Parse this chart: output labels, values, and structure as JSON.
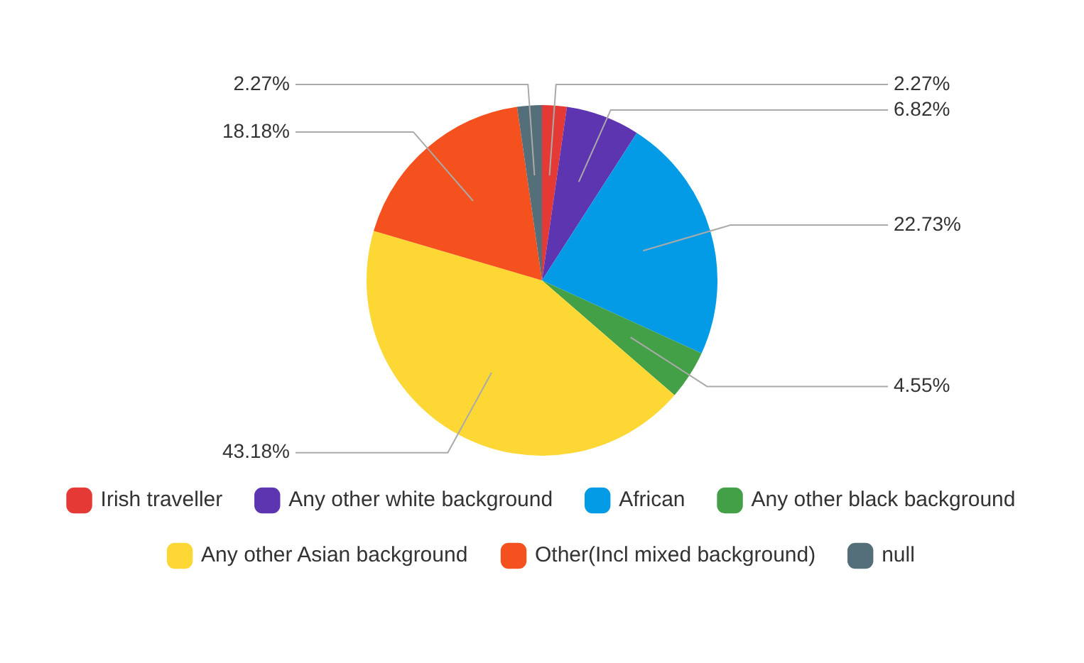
{
  "chart_data": {
    "type": "pie",
    "categories": [
      "Irish traveller",
      "Any other white background",
      "African",
      "Any other black background",
      "Any other Asian background",
      "Other(Incl mixed background)",
      "null"
    ],
    "values": [
      2.27,
      6.82,
      22.73,
      4.55,
      43.18,
      18.18,
      2.27
    ],
    "colors": [
      "#e53935",
      "#5e35b1",
      "#039be5",
      "#43a047",
      "#fdd835",
      "#f4511e",
      "#546e7a"
    ],
    "value_labels": [
      "2.27%",
      "6.82%",
      "22.73%",
      "4.55%",
      "43.18%",
      "18.18%",
      "2.27%"
    ],
    "legend": "bottom"
  }
}
